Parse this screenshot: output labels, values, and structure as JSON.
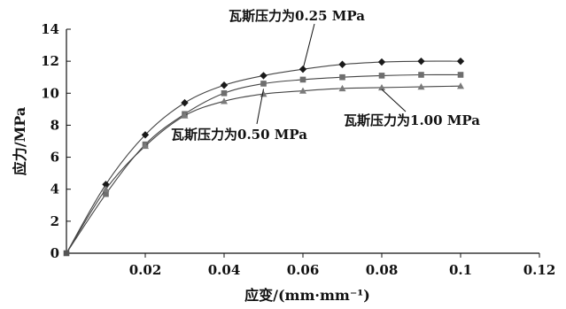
{
  "chart_data": {
    "type": "line",
    "title": "",
    "xlabel": "应变/(mm·mm⁻¹)",
    "ylabel": "应力/MPa",
    "xlim": [
      0,
      0.12
    ],
    "ylim": [
      0,
      14
    ],
    "x_ticks": [
      0.02,
      0.04,
      0.06,
      0.08,
      0.1,
      0.12
    ],
    "x_tick_labels": [
      "0.02",
      "0.04",
      "0.06",
      "0.08",
      "0.1",
      "0.12"
    ],
    "y_ticks": [
      0,
      2,
      4,
      6,
      8,
      10,
      12,
      14
    ],
    "y_tick_labels": [
      "0",
      "2",
      "4",
      "6",
      "8",
      "10",
      "12",
      "14"
    ],
    "grid": false,
    "legend": "none",
    "series": [
      {
        "name": "瓦斯压力为0.25 MPa",
        "marker": "diamond",
        "x": [
          0,
          0.01,
          0.02,
          0.03,
          0.04,
          0.05,
          0.06,
          0.07,
          0.08,
          0.09,
          0.1
        ],
        "y": [
          0,
          4.3,
          7.4,
          9.4,
          10.5,
          11.1,
          11.5,
          11.8,
          11.95,
          12.0,
          12.0
        ]
      },
      {
        "name": "瓦斯压力为0.50 MPa",
        "marker": "square",
        "x": [
          0,
          0.01,
          0.02,
          0.03,
          0.04,
          0.05,
          0.06,
          0.07,
          0.08,
          0.09,
          0.1
        ],
        "y": [
          0,
          3.7,
          6.8,
          8.7,
          10.0,
          10.6,
          10.85,
          11.0,
          11.1,
          11.15,
          11.15
        ]
      },
      {
        "name": "瓦斯压力为1.00 MPa",
        "marker": "triangle",
        "x": [
          0,
          0.01,
          0.02,
          0.03,
          0.04,
          0.05,
          0.06,
          0.07,
          0.08,
          0.09,
          0.1
        ],
        "y": [
          0,
          4.0,
          6.7,
          8.6,
          9.5,
          9.95,
          10.15,
          10.3,
          10.35,
          10.4,
          10.45
        ]
      }
    ]
  }
}
